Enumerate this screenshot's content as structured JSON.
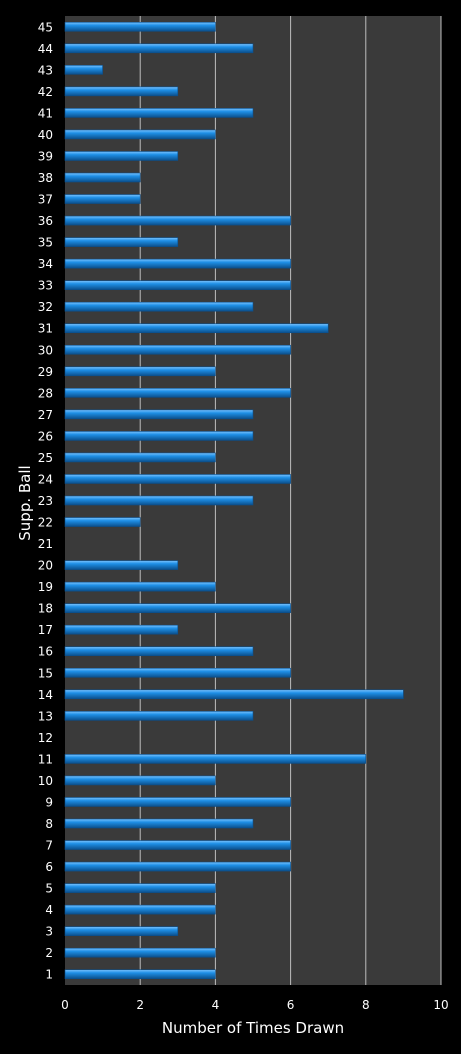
{
  "chart_data": {
    "type": "bar",
    "orientation": "horizontal",
    "title": "",
    "xlabel": "Number of Times Drawn",
    "ylabel": "Supp. Ball",
    "xlim": [
      0,
      10
    ],
    "xticks": [
      "0",
      "2",
      "4",
      "6",
      "8",
      "10"
    ],
    "grid": true,
    "legend": "none",
    "categories": [
      "1",
      "2",
      "3",
      "4",
      "5",
      "6",
      "7",
      "8",
      "9",
      "10",
      "11",
      "12",
      "13",
      "14",
      "15",
      "16",
      "17",
      "18",
      "19",
      "20",
      "21",
      "22",
      "23",
      "24",
      "25",
      "26",
      "27",
      "28",
      "29",
      "30",
      "31",
      "32",
      "33",
      "34",
      "35",
      "36",
      "37",
      "38",
      "39",
      "40",
      "41",
      "42",
      "43",
      "44",
      "45"
    ],
    "values": [
      4,
      4,
      3,
      4,
      4,
      6,
      6,
      5,
      6,
      4,
      8,
      0,
      5,
      9,
      6,
      5,
      3,
      6,
      4,
      3,
      0,
      2,
      5,
      6,
      4,
      5,
      5,
      6,
      4,
      6,
      7,
      5,
      6,
      6,
      3,
      6,
      2,
      2,
      3,
      4,
      5,
      3,
      1,
      5,
      4
    ]
  },
  "colors": {
    "page_background": "#000000",
    "plot_background": "#3a3a3a",
    "gridline": "#bdbdbd",
    "bar_fill": "#1e8fe6",
    "bar_highlight": "#7cc4ff",
    "bar_shadow": "#0b4f8c",
    "text": "#ffffff"
  }
}
